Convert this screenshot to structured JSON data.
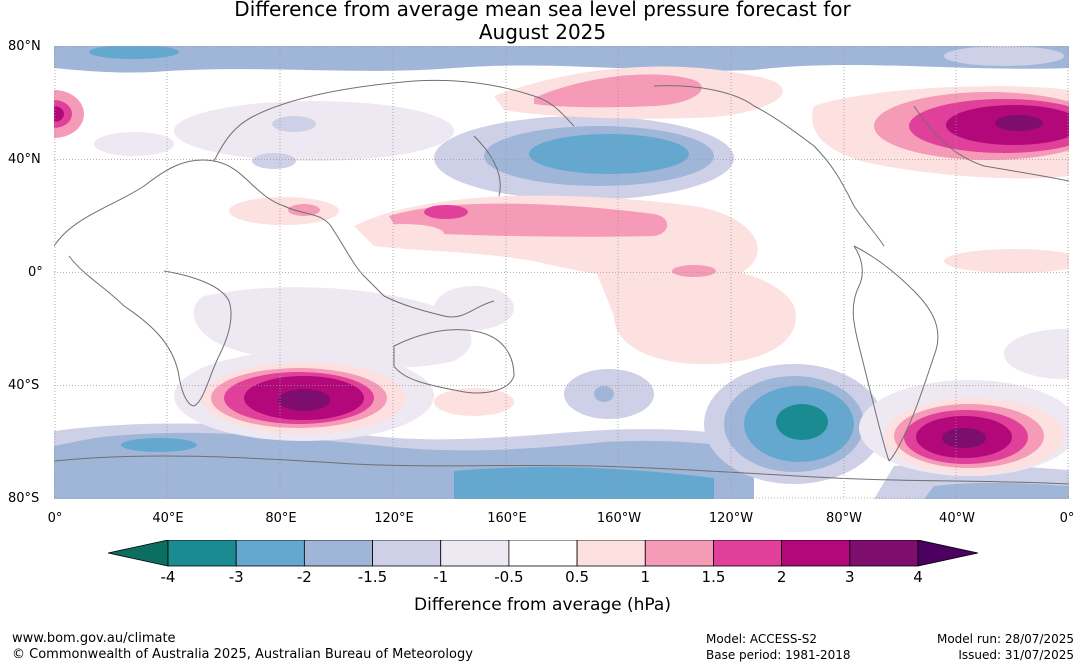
{
  "title_line1": "Difference from average mean sea level pressure forecast for",
  "title_line2": "August 2025",
  "lat_labels": [
    "80°N",
    "40°N",
    "0°",
    "40°S",
    "80°S"
  ],
  "lon_labels": [
    "0°",
    "40°E",
    "80°E",
    "120°E",
    "160°E",
    "160°W",
    "120°W",
    "80°W",
    "40°W",
    "0°"
  ],
  "colorbar": {
    "ticks": [
      "-4",
      "-3",
      "-2",
      "-1.5",
      "-1",
      "-0.5",
      "0.5",
      "1",
      "1.5",
      "2",
      "3",
      "4"
    ],
    "colors": [
      "#1a8c91",
      "#64a8d0",
      "#a0b6d8",
      "#cdd0e6",
      "#ede8f1",
      "#ffffff",
      "#fde0e0",
      "#f59ab7",
      "#e03f9a",
      "#b3087a",
      "#7d0d6f"
    ],
    "under_color": "#0c6d61",
    "over_color": "#4c0060",
    "label": "Difference from average (hPa)"
  },
  "footer": {
    "url": "www.bom.gov.au/climate",
    "copyright": "© Commonwealth of Australia 2025, Australian Bureau of Meteorology",
    "model": "Model: ACCESS-S2",
    "base_period": "Base period: 1981-2018",
    "model_run": "Model run: 28/07/2025",
    "issued": "Issued: 31/07/2025"
  }
}
